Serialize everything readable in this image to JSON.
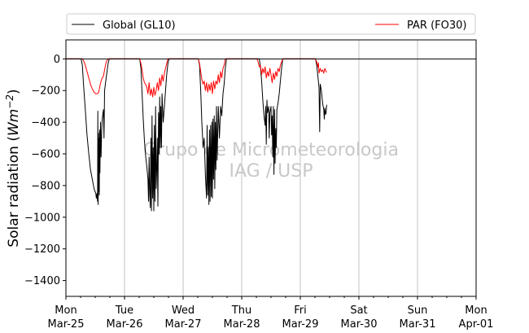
{
  "chart_data": {
    "type": "line",
    "title": "",
    "xlabel": "",
    "ylabel": "Solar radiation (Wm−2)",
    "ylabel_parts": {
      "prefix": "Solar radiation (",
      "unit": "Wm",
      "exponent": "−2",
      "suffix": ")"
    },
    "x_unit": "days from Mon Mar-25 00:00",
    "xlim": [
      0,
      7
    ],
    "ylim": [
      -1500,
      120
    ],
    "y_ticks": [
      0,
      -200,
      -400,
      -600,
      -800,
      -1000,
      -1200,
      -1400
    ],
    "y_tick_labels": [
      "0",
      "−200",
      "−400",
      "−600",
      "−800",
      "−1000",
      "−1200",
      "−1400"
    ],
    "x_ticks": [
      0,
      1,
      2,
      3,
      4,
      5,
      6,
      7
    ],
    "x_tick_labels": [
      [
        "Mon",
        "Mar-25"
      ],
      [
        "Tue",
        "Mar-26"
      ],
      [
        "Wed",
        "Mar-27"
      ],
      [
        "Thu",
        "Mar-28"
      ],
      [
        "Fri",
        "Mar-29"
      ],
      [
        "Sat",
        "Mar-30"
      ],
      [
        "Sun",
        "Mar-31"
      ],
      [
        "Mon",
        "Apr-01"
      ]
    ],
    "grid": "vertical at day ticks",
    "legend_position": "top, above plot",
    "watermark": [
      "Grupo de Micrometeorologia",
      "IAG / USP"
    ],
    "series": [
      {
        "name": "Global (GL10)",
        "color": "#000000",
        "points": [
          [
            0.0,
            0
          ],
          [
            0.26,
            0
          ],
          [
            0.28,
            -40
          ],
          [
            0.3,
            -160
          ],
          [
            0.33,
            -320
          ],
          [
            0.36,
            -480
          ],
          [
            0.39,
            -600
          ],
          [
            0.42,
            -700
          ],
          [
            0.45,
            -760
          ],
          [
            0.48,
            -820
          ],
          [
            0.5,
            -840
          ],
          [
            0.51,
            -850
          ],
          [
            0.52,
            -880
          ],
          [
            0.53,
            -850
          ],
          [
            0.54,
            -900
          ],
          [
            0.545,
            -330
          ],
          [
            0.55,
            -920
          ],
          [
            0.555,
            -470
          ],
          [
            0.56,
            -840
          ],
          [
            0.565,
            -500
          ],
          [
            0.57,
            -860
          ],
          [
            0.575,
            -450
          ],
          [
            0.58,
            -720
          ],
          [
            0.59,
            -400
          ],
          [
            0.6,
            -620
          ],
          [
            0.61,
            -460
          ],
          [
            0.62,
            -380
          ],
          [
            0.64,
            -320
          ],
          [
            0.65,
            -500
          ],
          [
            0.66,
            -200
          ],
          [
            0.69,
            -110
          ],
          [
            0.72,
            -30
          ],
          [
            0.74,
            0
          ],
          [
            1.26,
            0
          ],
          [
            1.28,
            -60
          ],
          [
            1.3,
            -220
          ],
          [
            1.32,
            -380
          ],
          [
            1.34,
            -520
          ],
          [
            1.36,
            -610
          ],
          [
            1.38,
            -680
          ],
          [
            1.4,
            -760
          ],
          [
            1.41,
            -900
          ],
          [
            1.42,
            -620
          ],
          [
            1.43,
            -860
          ],
          [
            1.44,
            -940
          ],
          [
            1.45,
            -500
          ],
          [
            1.46,
            -960
          ],
          [
            1.47,
            -360
          ],
          [
            1.48,
            -880
          ],
          [
            1.49,
            -560
          ],
          [
            1.5,
            -960
          ],
          [
            1.51,
            -420
          ],
          [
            1.52,
            -900
          ],
          [
            1.53,
            -300
          ],
          [
            1.54,
            -820
          ],
          [
            1.55,
            -700
          ],
          [
            1.56,
            -500
          ],
          [
            1.57,
            -930
          ],
          [
            1.58,
            -340
          ],
          [
            1.59,
            -600
          ],
          [
            1.6,
            -240
          ],
          [
            1.61,
            -560
          ],
          [
            1.62,
            -300
          ],
          [
            1.63,
            -560
          ],
          [
            1.64,
            -220
          ],
          [
            1.66,
            -400
          ],
          [
            1.68,
            -300
          ],
          [
            1.7,
            -200
          ],
          [
            1.72,
            -100
          ],
          [
            1.74,
            -30
          ],
          [
            1.76,
            0
          ],
          [
            2.26,
            0
          ],
          [
            2.28,
            -40
          ],
          [
            2.3,
            -200
          ],
          [
            2.32,
            -400
          ],
          [
            2.34,
            -560
          ],
          [
            2.36,
            -500
          ],
          [
            2.38,
            -740
          ],
          [
            2.4,
            -880
          ],
          [
            2.41,
            -420
          ],
          [
            2.42,
            -860
          ],
          [
            2.43,
            -560
          ],
          [
            2.44,
            -920
          ],
          [
            2.45,
            -450
          ],
          [
            2.46,
            -900
          ],
          [
            2.47,
            -420
          ],
          [
            2.48,
            -870
          ],
          [
            2.49,
            -400
          ],
          [
            2.5,
            -880
          ],
          [
            2.51,
            -380
          ],
          [
            2.52,
            -760
          ],
          [
            2.53,
            -360
          ],
          [
            2.54,
            -820
          ],
          [
            2.55,
            -400
          ],
          [
            2.56,
            -700
          ],
          [
            2.57,
            -300
          ],
          [
            2.58,
            -640
          ],
          [
            2.6,
            -300
          ],
          [
            2.62,
            -500
          ],
          [
            2.64,
            -300
          ],
          [
            2.66,
            -360
          ],
          [
            2.68,
            -220
          ],
          [
            2.7,
            -160
          ],
          [
            2.72,
            -60
          ],
          [
            2.74,
            0
          ],
          [
            3.3,
            0
          ],
          [
            3.32,
            -50
          ],
          [
            3.34,
            -140
          ],
          [
            3.36,
            -260
          ],
          [
            3.38,
            -360
          ],
          [
            3.4,
            -420
          ],
          [
            3.41,
            -300
          ],
          [
            3.42,
            -540
          ],
          [
            3.43,
            -260
          ],
          [
            3.44,
            -340
          ],
          [
            3.46,
            -300
          ],
          [
            3.47,
            -500
          ],
          [
            3.48,
            -340
          ],
          [
            3.5,
            -300
          ],
          [
            3.51,
            -480
          ],
          [
            3.52,
            -360
          ],
          [
            3.53,
            -620
          ],
          [
            3.54,
            -300
          ],
          [
            3.55,
            -730
          ],
          [
            3.56,
            -320
          ],
          [
            3.57,
            -660
          ],
          [
            3.58,
            -440
          ],
          [
            3.59,
            -560
          ],
          [
            3.6,
            -320
          ],
          [
            3.62,
            -280
          ],
          [
            3.64,
            -220
          ],
          [
            3.66,
            -140
          ],
          [
            3.68,
            -60
          ],
          [
            3.7,
            0
          ],
          [
            4.26,
            0
          ],
          [
            4.28,
            -40
          ],
          [
            4.3,
            -110
          ],
          [
            4.32,
            -180
          ],
          [
            4.33,
            -460
          ],
          [
            4.34,
            -160
          ],
          [
            4.36,
            -200
          ],
          [
            4.38,
            -280
          ],
          [
            4.4,
            -320
          ],
          [
            4.41,
            -380
          ],
          [
            4.42,
            -310
          ],
          [
            4.43,
            -350
          ],
          [
            4.44,
            -340
          ],
          [
            4.45,
            -290
          ]
        ]
      },
      {
        "name": "PAR (FO30)",
        "color": "#ff0000",
        "points": [
          [
            0.0,
            0
          ],
          [
            0.28,
            0
          ],
          [
            0.3,
            -10
          ],
          [
            0.33,
            -40
          ],
          [
            0.36,
            -80
          ],
          [
            0.39,
            -120
          ],
          [
            0.42,
            -160
          ],
          [
            0.45,
            -190
          ],
          [
            0.48,
            -210
          ],
          [
            0.51,
            -220
          ],
          [
            0.54,
            -220
          ],
          [
            0.56,
            -210
          ],
          [
            0.58,
            -170
          ],
          [
            0.6,
            -140
          ],
          [
            0.62,
            -120
          ],
          [
            0.64,
            -110
          ],
          [
            0.66,
            -70
          ],
          [
            0.68,
            -30
          ],
          [
            0.7,
            -10
          ],
          [
            0.72,
            0
          ],
          [
            1.26,
            0
          ],
          [
            1.28,
            -30
          ],
          [
            1.3,
            -70
          ],
          [
            1.32,
            -120
          ],
          [
            1.34,
            -150
          ],
          [
            1.36,
            -160
          ],
          [
            1.38,
            -180
          ],
          [
            1.4,
            -220
          ],
          [
            1.42,
            -150
          ],
          [
            1.44,
            -230
          ],
          [
            1.46,
            -190
          ],
          [
            1.48,
            -240
          ],
          [
            1.5,
            -180
          ],
          [
            1.52,
            -230
          ],
          [
            1.54,
            -200
          ],
          [
            1.56,
            -150
          ],
          [
            1.58,
            -200
          ],
          [
            1.6,
            -120
          ],
          [
            1.62,
            -170
          ],
          [
            1.64,
            -100
          ],
          [
            1.66,
            -140
          ],
          [
            1.68,
            -90
          ],
          [
            1.7,
            -60
          ],
          [
            1.72,
            -30
          ],
          [
            1.74,
            0
          ],
          [
            2.26,
            0
          ],
          [
            2.28,
            -30
          ],
          [
            2.3,
            -80
          ],
          [
            2.32,
            -130
          ],
          [
            2.34,
            -160
          ],
          [
            2.36,
            -140
          ],
          [
            2.38,
            -200
          ],
          [
            2.4,
            -150
          ],
          [
            2.42,
            -210
          ],
          [
            2.44,
            -160
          ],
          [
            2.46,
            -200
          ],
          [
            2.48,
            -150
          ],
          [
            2.5,
            -220
          ],
          [
            2.52,
            -140
          ],
          [
            2.54,
            -190
          ],
          [
            2.56,
            -140
          ],
          [
            2.58,
            -160
          ],
          [
            2.6,
            -100
          ],
          [
            2.62,
            -150
          ],
          [
            2.64,
            -80
          ],
          [
            2.66,
            -120
          ],
          [
            2.68,
            -60
          ],
          [
            2.7,
            -40
          ],
          [
            2.72,
            0
          ],
          [
            3.26,
            0
          ],
          [
            3.28,
            -20
          ],
          [
            3.3,
            -50
          ],
          [
            3.32,
            -40
          ],
          [
            3.34,
            -100
          ],
          [
            3.36,
            -60
          ],
          [
            3.38,
            -90
          ],
          [
            3.4,
            -50
          ],
          [
            3.42,
            -120
          ],
          [
            3.44,
            -80
          ],
          [
            3.46,
            -110
          ],
          [
            3.48,
            -60
          ],
          [
            3.5,
            -100
          ],
          [
            3.52,
            -150
          ],
          [
            3.54,
            -90
          ],
          [
            3.56,
            -130
          ],
          [
            3.58,
            -80
          ],
          [
            3.6,
            -110
          ],
          [
            3.62,
            -60
          ],
          [
            3.64,
            -80
          ],
          [
            3.66,
            -40
          ],
          [
            3.68,
            -20
          ],
          [
            3.7,
            0
          ],
          [
            4.26,
            0
          ],
          [
            4.28,
            -20
          ],
          [
            4.3,
            -50
          ],
          [
            4.31,
            -25
          ],
          [
            4.32,
            -90
          ],
          [
            4.34,
            -60
          ],
          [
            4.36,
            -80
          ],
          [
            4.38,
            -70
          ],
          [
            4.4,
            -90
          ],
          [
            4.42,
            -60
          ],
          [
            4.44,
            -80
          ],
          [
            4.45,
            -85
          ]
        ]
      }
    ]
  }
}
